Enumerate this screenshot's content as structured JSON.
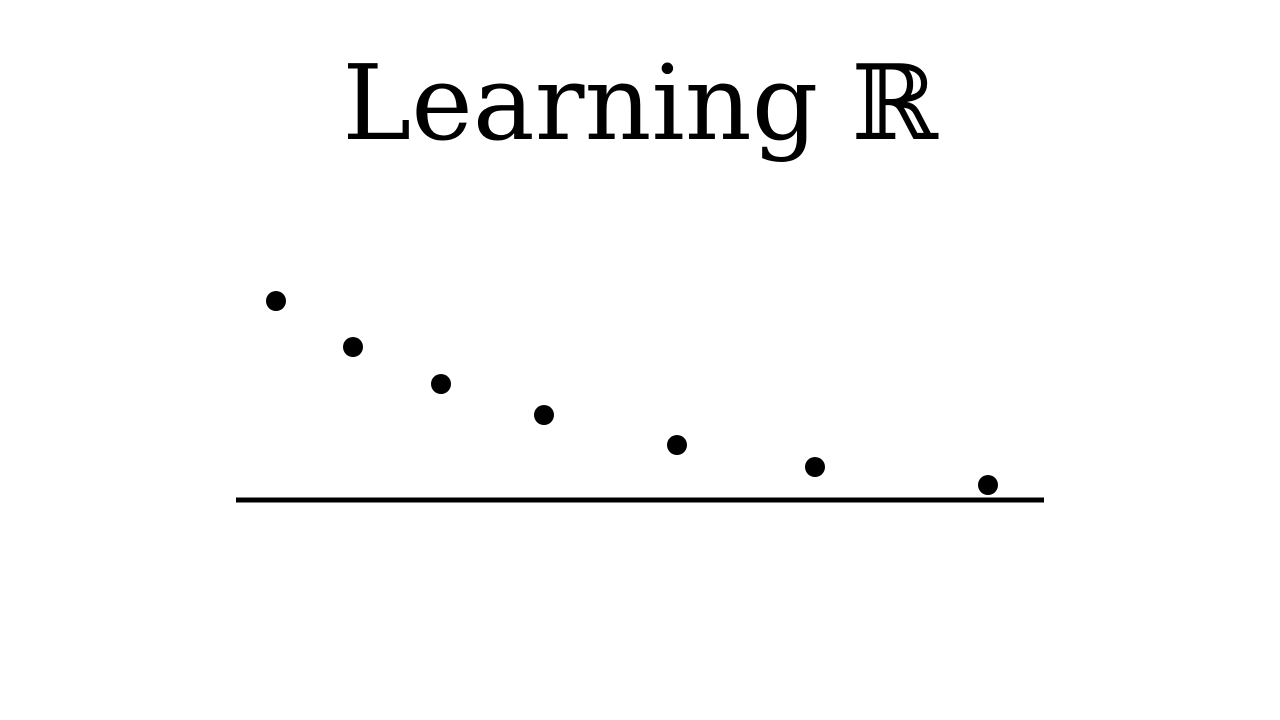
{
  "title": "Learning ℝ",
  "chart_data": {
    "type": "scatter",
    "title": "",
    "xlabel": "",
    "ylabel": "",
    "x": [
      1,
      2,
      3,
      4,
      5,
      6,
      7
    ],
    "y": [
      7,
      6,
      5,
      4,
      3,
      2,
      1
    ],
    "colors": {
      "ink": "#000000",
      "background": "#ffffff"
    }
  }
}
